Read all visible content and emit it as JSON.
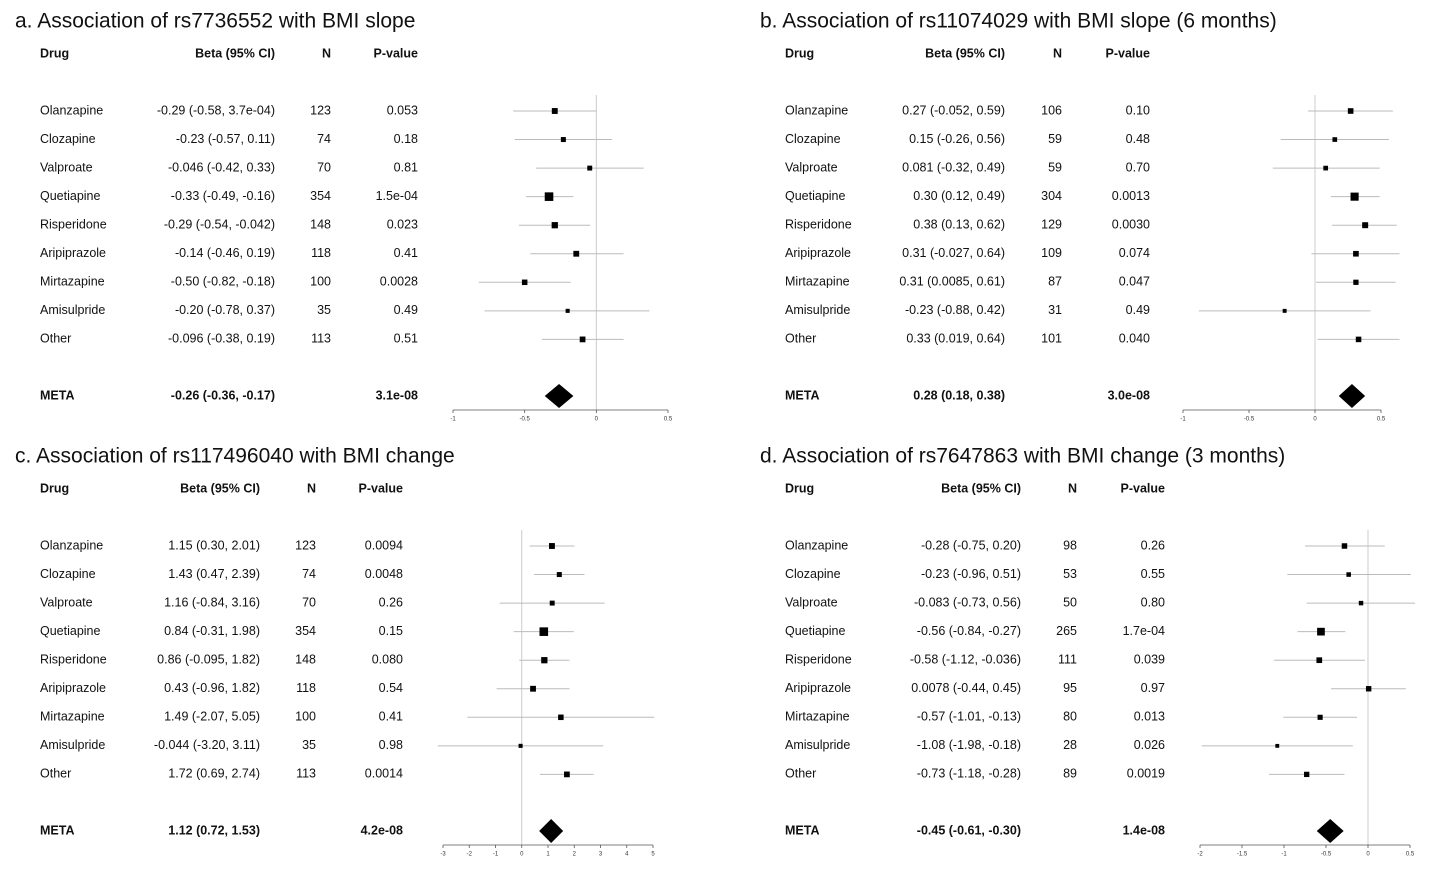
{
  "chart_data": [
    {
      "type": "forest",
      "title": "a. Association of rs7736552 with BMI slope",
      "columns": [
        "Drug",
        "Beta (95% CI)",
        "N",
        "P-value"
      ],
      "categories": [
        "Olanzapine",
        "Clozapine",
        "Valproate",
        "Quetiapine",
        "Risperidone",
        "Aripiprazole",
        "Mirtazapine",
        "Amisulpride",
        "Other"
      ],
      "values": [
        -0.29,
        -0.23,
        -0.046,
        -0.33,
        -0.29,
        -0.14,
        -0.5,
        -0.2,
        -0.096
      ],
      "lower": [
        -0.58,
        -0.57,
        -0.42,
        -0.49,
        -0.54,
        -0.46,
        -0.82,
        -0.78,
        -0.38
      ],
      "upper": [
        0.00037,
        0.11,
        0.33,
        -0.16,
        -0.042,
        0.19,
        -0.18,
        0.37,
        0.19
      ],
      "value_labels": [
        "-0.29 (-0.58, 3.7e-04)",
        "-0.23 (-0.57, 0.11)",
        "-0.046 (-0.42, 0.33)",
        "-0.33 (-0.49, -0.16)",
        "-0.29 (-0.54, -0.042)",
        "-0.14 (-0.46, 0.19)",
        "-0.50 (-0.82, -0.18)",
        "-0.20 (-0.78, 0.37)",
        "-0.096 (-0.38, 0.19)"
      ],
      "n": [
        123,
        74,
        70,
        354,
        148,
        118,
        100,
        35,
        113
      ],
      "p_values": [
        "0.053",
        "0.18",
        "0.81",
        "1.5e-04",
        "0.023",
        "0.41",
        "0.0028",
        "0.49",
        "0.51"
      ],
      "meta": {
        "label": "META",
        "value": -0.26,
        "lower": -0.36,
        "upper": -0.17,
        "value_label": "-0.26 (-0.36, -0.17)",
        "p_value": "3.1e-08"
      },
      "xlim": [
        -1,
        0.5
      ],
      "xticks": [
        -1,
        -0.5,
        0,
        0.5
      ],
      "color": "#000000"
    },
    {
      "type": "forest",
      "title": "b. Association of rs11074029 with BMI slope (6 months)",
      "columns": [
        "Drug",
        "Beta (95% CI)",
        "N",
        "P-value"
      ],
      "categories": [
        "Olanzapine",
        "Clozapine",
        "Valproate",
        "Quetiapine",
        "Risperidone",
        "Aripiprazole",
        "Mirtazapine",
        "Amisulpride",
        "Other"
      ],
      "values": [
        0.27,
        0.15,
        0.081,
        0.3,
        0.38,
        0.31,
        0.31,
        -0.23,
        0.33
      ],
      "lower": [
        -0.052,
        -0.26,
        -0.32,
        0.12,
        0.13,
        -0.027,
        0.0085,
        -0.88,
        0.019
      ],
      "upper": [
        0.59,
        0.56,
        0.49,
        0.49,
        0.62,
        0.64,
        0.61,
        0.42,
        0.64
      ],
      "value_labels": [
        "0.27 (-0.052, 0.59)",
        "0.15 (-0.26, 0.56)",
        "0.081 (-0.32, 0.49)",
        "0.30 (0.12, 0.49)",
        "0.38 (0.13, 0.62)",
        "0.31 (-0.027, 0.64)",
        "0.31 (0.0085, 0.61)",
        "-0.23 (-0.88, 0.42)",
        "0.33 (0.019, 0.64)"
      ],
      "n": [
        106,
        59,
        59,
        304,
        129,
        109,
        87,
        31,
        101
      ],
      "p_values": [
        "0.10",
        "0.48",
        "0.70",
        "0.0013",
        "0.0030",
        "0.074",
        "0.047",
        "0.49",
        "0.040"
      ],
      "meta": {
        "label": "META",
        "value": 0.28,
        "lower": 0.18,
        "upper": 0.38,
        "value_label": "0.28 (0.18, 0.38)",
        "p_value": "3.0e-08"
      },
      "xlim": [
        -1,
        0.5
      ],
      "xticks": [
        -1,
        -0.5,
        0,
        0.5
      ],
      "color": "#000000"
    },
    {
      "type": "forest",
      "title": "c. Association of rs117496040 with BMI change",
      "columns": [
        "Drug",
        "Beta (95% CI)",
        "N",
        "P-value"
      ],
      "categories": [
        "Olanzapine",
        "Clozapine",
        "Valproate",
        "Quetiapine",
        "Risperidone",
        "Aripiprazole",
        "Mirtazapine",
        "Amisulpride",
        "Other"
      ],
      "values": [
        1.15,
        1.43,
        1.16,
        0.84,
        0.86,
        0.43,
        1.49,
        -0.044,
        1.72
      ],
      "lower": [
        0.3,
        0.47,
        -0.84,
        -0.31,
        -0.095,
        -0.96,
        -2.07,
        -3.2,
        0.69
      ],
      "upper": [
        2.01,
        2.39,
        3.16,
        1.98,
        1.82,
        1.82,
        5.05,
        3.11,
        2.74
      ],
      "value_labels": [
        "1.15 (0.30, 2.01)",
        "1.43 (0.47, 2.39)",
        "1.16 (-0.84, 3.16)",
        "0.84 (-0.31, 1.98)",
        "0.86 (-0.095, 1.82)",
        "0.43 (-0.96, 1.82)",
        "1.49 (-2.07, 5.05)",
        "-0.044 (-3.20, 3.11)",
        "1.72 (0.69, 2.74)"
      ],
      "n": [
        123,
        74,
        70,
        354,
        148,
        118,
        100,
        35,
        113
      ],
      "p_values": [
        "0.0094",
        "0.0048",
        "0.26",
        "0.15",
        "0.080",
        "0.54",
        "0.41",
        "0.98",
        "0.0014"
      ],
      "meta": {
        "label": "META",
        "value": 1.12,
        "lower": 0.72,
        "upper": 1.53,
        "value_label": "1.12 (0.72, 1.53)",
        "p_value": "4.2e-08"
      },
      "xlim": [
        -3,
        5
      ],
      "xticks": [
        -3,
        -2,
        -1,
        0,
        1,
        2,
        3,
        4,
        5
      ],
      "color": "#000000"
    },
    {
      "type": "forest",
      "title": "d. Association of rs7647863 with BMI change (3 months)",
      "columns": [
        "Drug",
        "Beta (95% CI)",
        "N",
        "P-value"
      ],
      "categories": [
        "Olanzapine",
        "Clozapine",
        "Valproate",
        "Quetiapine",
        "Risperidone",
        "Aripiprazole",
        "Mirtazapine",
        "Amisulpride",
        "Other"
      ],
      "values": [
        -0.28,
        -0.23,
        -0.083,
        -0.56,
        -0.58,
        0.0078,
        -0.57,
        -1.08,
        -0.73
      ],
      "lower": [
        -0.75,
        -0.96,
        -0.73,
        -0.84,
        -1.12,
        -0.44,
        -1.01,
        -1.98,
        -1.18
      ],
      "upper": [
        0.2,
        0.51,
        0.56,
        -0.27,
        -0.036,
        0.45,
        -0.13,
        -0.18,
        -0.28
      ],
      "value_labels": [
        "-0.28 (-0.75, 0.20)",
        "-0.23 (-0.96, 0.51)",
        "-0.083 (-0.73, 0.56)",
        "-0.56 (-0.84, -0.27)",
        "-0.58 (-1.12, -0.036)",
        "0.0078 (-0.44, 0.45)",
        "-0.57 (-1.01, -0.13)",
        "-1.08 (-1.98, -0.18)",
        "-0.73 (-1.18, -0.28)"
      ],
      "n": [
        98,
        53,
        50,
        265,
        111,
        95,
        80,
        28,
        89
      ],
      "p_values": [
        "0.26",
        "0.55",
        "0.80",
        "1.7e-04",
        "0.039",
        "0.97",
        "0.013",
        "0.026",
        "0.0019"
      ],
      "meta": {
        "label": "META",
        "value": -0.45,
        "lower": -0.61,
        "upper": -0.3,
        "value_label": "-0.45 (-0.61, -0.30)",
        "p_value": "1.4e-08"
      },
      "xlim": [
        -2,
        0.5
      ],
      "xticks": [
        -2,
        -1.5,
        -1,
        -0.5,
        0,
        0.5
      ],
      "color": "#000000"
    }
  ]
}
